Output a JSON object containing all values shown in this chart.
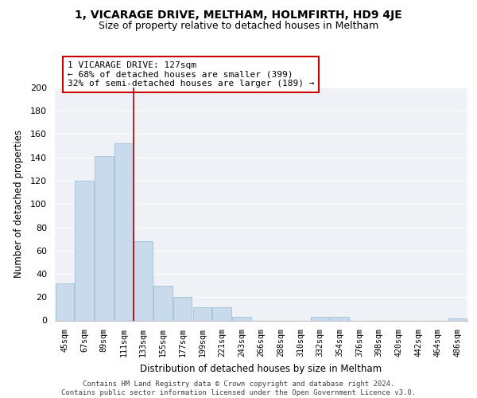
{
  "title": "1, VICARAGE DRIVE, MELTHAM, HOLMFIRTH, HD9 4JE",
  "subtitle": "Size of property relative to detached houses in Meltham",
  "xlabel": "Distribution of detached houses by size in Meltham",
  "ylabel": "Number of detached properties",
  "bar_labels": [
    "45sqm",
    "67sqm",
    "89sqm",
    "111sqm",
    "133sqm",
    "155sqm",
    "177sqm",
    "199sqm",
    "221sqm",
    "243sqm",
    "266sqm",
    "288sqm",
    "310sqm",
    "332sqm",
    "354sqm",
    "376sqm",
    "398sqm",
    "420sqm",
    "442sqm",
    "464sqm",
    "486sqm"
  ],
  "bar_values": [
    32,
    120,
    141,
    152,
    68,
    30,
    20,
    11,
    11,
    3,
    0,
    0,
    0,
    3,
    3,
    0,
    0,
    0,
    0,
    0,
    2
  ],
  "bar_color": "#c8daeb",
  "bar_edge_color": "#a8c4d8",
  "property_line_x": 3.5,
  "property_line_color": "#aa0000",
  "annotation_line1": "1 VICARAGE DRIVE: 127sqm",
  "annotation_line2": "← 68% of detached houses are smaller (399)",
  "annotation_line3": "32% of semi-detached houses are larger (189) →",
  "annotation_box_color": "white",
  "annotation_box_edge_color": "#cc0000",
  "ylim": [
    0,
    200
  ],
  "yticks": [
    0,
    20,
    40,
    60,
    80,
    100,
    120,
    140,
    160,
    180,
    200
  ],
  "footer_text": "Contains HM Land Registry data © Crown copyright and database right 2024.\nContains public sector information licensed under the Open Government Licence v3.0.",
  "background_color": "#eef2f7",
  "grid_color": "white",
  "title_fontsize": 10,
  "subtitle_fontsize": 9
}
